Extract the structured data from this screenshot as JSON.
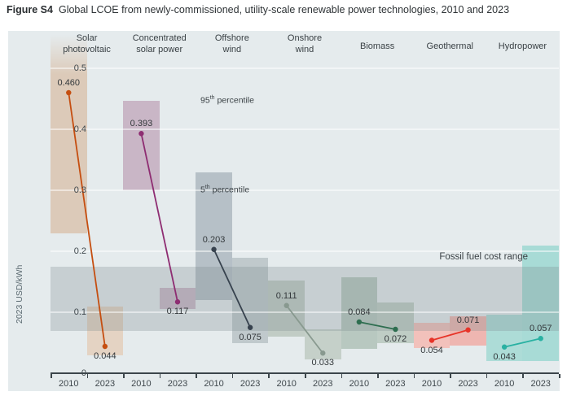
{
  "figure": {
    "tag": "Figure S4",
    "title": "Global LCOE from newly-commissioned, utility-scale renewable power technologies, 2010 and 2023"
  },
  "chart_data": {
    "type": "dumbbell-range",
    "title": "Global LCOE from newly-commissioned, utility-scale renewable power technologies, 2010 and 2023",
    "ylabel": "2023 USD/kWh",
    "unit": "2023 USD/kWh",
    "ylim": [
      0,
      0.56
    ],
    "yticks": [
      0,
      0.1,
      0.2,
      0.3,
      0.4,
      0.5
    ],
    "year_labels": [
      "2010",
      "2023"
    ],
    "grid": true,
    "fossil_band": {
      "label": "Fossil fuel cost range",
      "lo": 0.07,
      "hi": 0.175,
      "color": "rgba(122,136,141,0.28)"
    },
    "percentiles": {
      "p95": {
        "num": "95",
        "sup": "th",
        "word": " percentile"
      },
      "p5": {
        "num": "5",
        "sup": "th",
        "word": " percentile"
      }
    },
    "series": [
      {
        "name": "Solar photovoltaic",
        "name_lines": [
          "Solar",
          "photovoltaic"
        ],
        "line_color": "#c54e10",
        "v2010": 0.46,
        "v2023": 0.044,
        "pos_2010": "above",
        "pos_2023": "below",
        "band_2010": {
          "lo": 0.23,
          "hi": 0.555,
          "fade_top": true,
          "color": "#dccab9"
        },
        "band_2023": {
          "lo": 0.03,
          "hi": 0.11,
          "color": "#e4d3c3"
        }
      },
      {
        "name": "Concentrated solar power",
        "name_lines": [
          "Concentrated",
          "solar power"
        ],
        "line_color": "#8e2d72",
        "v2010": 0.393,
        "v2023": 0.117,
        "pos_2010": "above",
        "pos_2023": "below",
        "band_2010": {
          "lo": 0.3,
          "hi": 0.447,
          "color": "#c9b6c6"
        },
        "band_2023": {
          "lo": 0.105,
          "hi": 0.14,
          "color": "#cbb9c8"
        }
      },
      {
        "name": "Offshore wind",
        "name_lines": [
          "Offshore",
          "wind"
        ],
        "line_color": "#37424e",
        "v2010": 0.203,
        "v2023": 0.075,
        "pos_2010": "above",
        "pos_2023": "below",
        "band_2010": {
          "lo": 0.12,
          "hi": 0.33,
          "color": "#b6c0c7"
        },
        "band_2023": {
          "lo": 0.05,
          "hi": 0.19,
          "color": "#c0c9cc"
        }
      },
      {
        "name": "Onshore wind",
        "name_lines": [
          "Onshore",
          "wind"
        ],
        "line_color": "#88998f",
        "v2010": 0.111,
        "v2023": 0.033,
        "pos_2010": "above",
        "pos_2023": "below",
        "band_2010": {
          "lo": 0.06,
          "hi": 0.152,
          "color": "#c1ccc5"
        },
        "band_2023": {
          "lo": 0.023,
          "hi": 0.072,
          "color": "#c5d0c9"
        }
      },
      {
        "name": "Biomass",
        "name_lines": [
          "Biomass"
        ],
        "line_color": "#2e6e50",
        "v2010": 0.084,
        "v2023": 0.072,
        "pos_2010": "above",
        "pos_2023": "below",
        "band_2010": {
          "lo": 0.04,
          "hi": 0.158,
          "color": "#b8c8c0"
        },
        "band_2023": {
          "lo": 0.05,
          "hi": 0.116,
          "color": "#bfcdc5"
        }
      },
      {
        "name": "Geothermal",
        "name_lines": [
          "Geothermal"
        ],
        "line_color": "#e73328",
        "v2010": 0.054,
        "v2023": 0.071,
        "pos_2010": "below",
        "pos_2023": "above",
        "band_2010": {
          "lo": 0.042,
          "hi": 0.083,
          "color": "#f2c1bb"
        },
        "band_2023": {
          "lo": 0.046,
          "hi": 0.093,
          "color": "#eeb6b1"
        }
      },
      {
        "name": "Hydropower",
        "name_lines": [
          "Hydropower"
        ],
        "line_color": "#29b1a2",
        "v2010": 0.043,
        "v2023": 0.057,
        "pos_2010": "below",
        "pos_2023": "above",
        "band_2010": {
          "lo": 0.02,
          "hi": 0.096,
          "color": "#addcd7"
        },
        "band_2023": {
          "lo": 0.02,
          "hi": 0.21,
          "color": "#a8dbd6"
        }
      }
    ]
  }
}
